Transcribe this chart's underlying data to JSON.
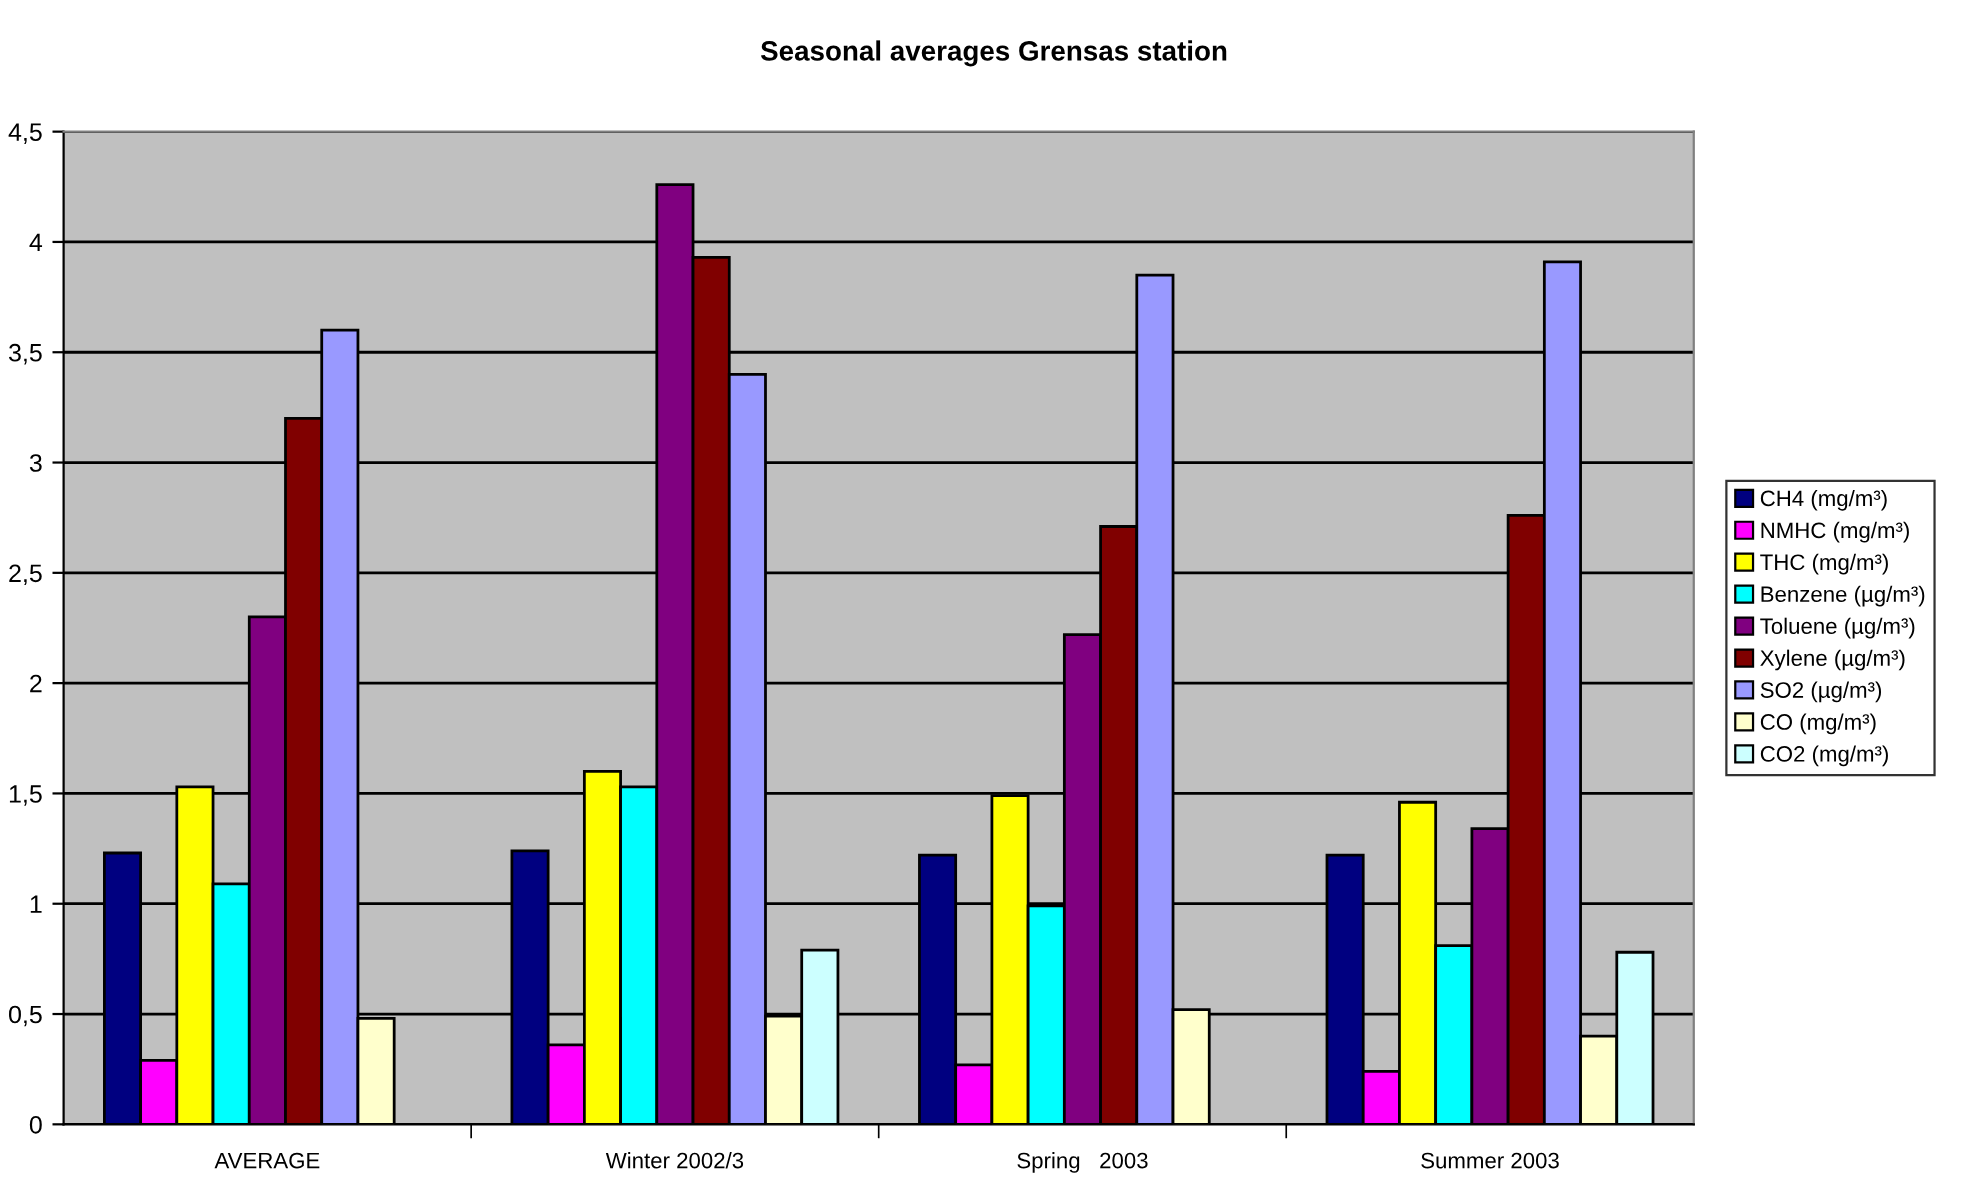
{
  "chart_data": {
    "type": "bar",
    "title": "Seasonal averages Grensas station",
    "categories": [
      "AVERAGE",
      "Winter 2002/3",
      "Spring   2003",
      "Summer 2003"
    ],
    "series": [
      {
        "name": "CH4 (mg/m³)",
        "color": "#000080",
        "values": [
          1.23,
          1.24,
          1.22,
          1.22
        ]
      },
      {
        "name": "NMHC (mg/m³)",
        "color": "#ff00ff",
        "values": [
          0.29,
          0.36,
          0.27,
          0.24
        ]
      },
      {
        "name": "THC (mg/m³)",
        "color": "#ffff00",
        "values": [
          1.53,
          1.6,
          1.49,
          1.46
        ]
      },
      {
        "name": "Benzene (µg/m³)",
        "color": "#00ffff",
        "values": [
          1.09,
          1.53,
          0.99,
          0.81
        ]
      },
      {
        "name": "Toluene (µg/m³)",
        "color": "#800080",
        "values": [
          2.3,
          4.26,
          2.22,
          1.34
        ]
      },
      {
        "name": "Xylene (µg/m³)",
        "color": "#800000",
        "values": [
          3.2,
          3.93,
          2.71,
          2.76
        ]
      },
      {
        "name": "SO2 (µg/m³)",
        "color": "#9999ff",
        "values": [
          3.6,
          3.4,
          3.85,
          3.91
        ]
      },
      {
        "name": "CO (mg/m³)",
        "color": "#ffffcc",
        "values": [
          0.48,
          0.49,
          0.52,
          0.4
        ]
      },
      {
        "name": "CO2 (mg/m³)",
        "color": "#ccffff",
        "values": [
          null,
          0.79,
          null,
          0.78
        ]
      }
    ],
    "ylim": [
      0,
      4.5
    ],
    "yticks": [
      0,
      {
        "value": 0.5,
        "label": "0,5"
      },
      1,
      {
        "value": 1.5,
        "label": "1,5"
      },
      2,
      {
        "value": 2.5,
        "label": "2,5"
      },
      3,
      {
        "value": 3.5,
        "label": "3,5"
      },
      4,
      {
        "value": 4.5,
        "label": "4,5"
      }
    ],
    "grid": "y",
    "legend": "right"
  }
}
